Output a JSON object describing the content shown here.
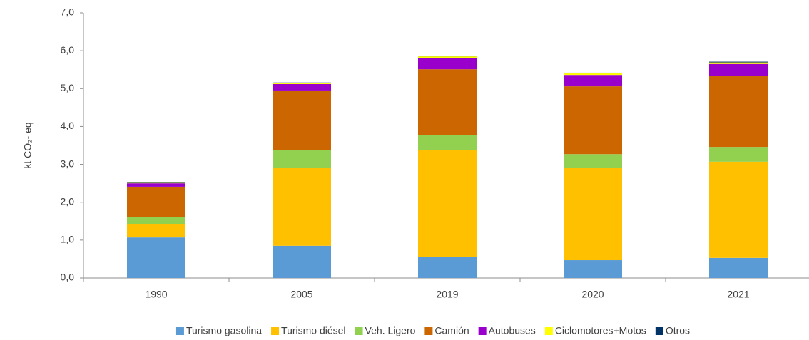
{
  "chart_data": {
    "type": "stacked_bar",
    "y_label": "kt CO₂- eq",
    "categories": [
      "1990",
      "2005",
      "2019",
      "2020",
      "2021"
    ],
    "series": [
      {
        "name": "Turismo gasolina",
        "color": "#5b9bd5",
        "values": [
          1.07,
          0.85,
          0.56,
          0.47,
          0.53
        ]
      },
      {
        "name": "Turismo diésel",
        "color": "#ffc000",
        "values": [
          0.36,
          2.05,
          2.81,
          2.43,
          2.54
        ]
      },
      {
        "name": "Veh. Ligero",
        "color": "#92d050",
        "values": [
          0.17,
          0.47,
          0.41,
          0.37,
          0.39
        ]
      },
      {
        "name": "Camión",
        "color": "#cc6600",
        "values": [
          0.81,
          1.58,
          1.73,
          1.79,
          1.88
        ]
      },
      {
        "name": "Autobuses",
        "color": "#9900cc",
        "values": [
          0.09,
          0.17,
          0.3,
          0.3,
          0.31
        ]
      },
      {
        "name": "Ciclomotores+Motos",
        "color": "#ffff00",
        "values": [
          0.01,
          0.03,
          0.04,
          0.04,
          0.04
        ]
      },
      {
        "name": "Otros",
        "color": "#003366",
        "values": [
          0.01,
          0.01,
          0.02,
          0.02,
          0.02
        ]
      }
    ],
    "ylim": [
      0,
      7
    ],
    "yticks": [
      {
        "value": 0,
        "label": "0,0"
      },
      {
        "value": 1,
        "label": "1,0"
      },
      {
        "value": 2,
        "label": "2,0"
      },
      {
        "value": 3,
        "label": "3,0"
      },
      {
        "value": 4,
        "label": "4,0"
      },
      {
        "value": 5,
        "label": "5,0"
      },
      {
        "value": 6,
        "label": "6,0"
      },
      {
        "value": 7,
        "label": "7,0"
      }
    ],
    "grid": false,
    "legend": "bottom"
  }
}
